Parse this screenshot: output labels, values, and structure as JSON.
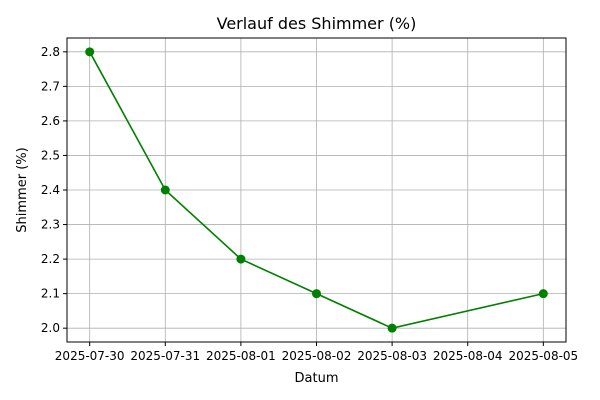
{
  "chart_data": {
    "type": "line",
    "title": "Verlauf des Shimmer (%)",
    "xlabel": "Datum",
    "ylabel": "Shimmer (%)",
    "x_ticks": [
      "2025-07-30",
      "2025-07-31",
      "2025-08-01",
      "2025-08-02",
      "2025-08-03",
      "2025-08-04",
      "2025-08-05"
    ],
    "y_ticks": [
      "2.0",
      "2.1",
      "2.2",
      "2.3",
      "2.4",
      "2.5",
      "2.6",
      "2.7",
      "2.8"
    ],
    "xlim": [
      "2025-07-29.7",
      "2025-08-05.3"
    ],
    "ylim": [
      1.96,
      2.84
    ],
    "grid": true,
    "series": [
      {
        "color": "#008000",
        "marker": "circle",
        "points": [
          {
            "x": "2025-07-30",
            "y": 2.8
          },
          {
            "x": "2025-07-31",
            "y": 2.4
          },
          {
            "x": "2025-08-01",
            "y": 2.2
          },
          {
            "x": "2025-08-02",
            "y": 2.1
          },
          {
            "x": "2025-08-03",
            "y": 2.0
          },
          {
            "x": "2025-08-05",
            "y": 2.1
          }
        ]
      }
    ]
  }
}
